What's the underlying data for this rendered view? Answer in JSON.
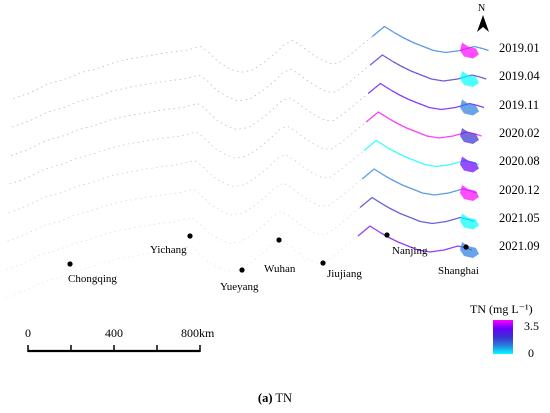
{
  "north_arrow": {
    "letter": "N"
  },
  "dates": [
    "2019.01",
    "2019.04",
    "2019.11",
    "2020.02",
    "2020.08",
    "2020.12",
    "2021.05",
    "2021.09"
  ],
  "cities": [
    {
      "name": "Chongqing"
    },
    {
      "name": "Yichang"
    },
    {
      "name": "Yueyang"
    },
    {
      "name": "Wuhan"
    },
    {
      "name": "Jiujiang"
    },
    {
      "name": "Nanjing"
    },
    {
      "name": "Shanghai"
    }
  ],
  "scale_bar": {
    "labels": [
      "0",
      "400",
      "800km"
    ]
  },
  "legend": {
    "title": "TN (mg L⁻¹)",
    "max": "3.5",
    "min": "0",
    "colors": [
      "#ff00ff",
      "#6a00ff",
      "#3b2fcf",
      "#2a7de0",
      "#00ffff"
    ]
  },
  "caption": {
    "prefix": "(a)",
    "text": " TN"
  }
}
